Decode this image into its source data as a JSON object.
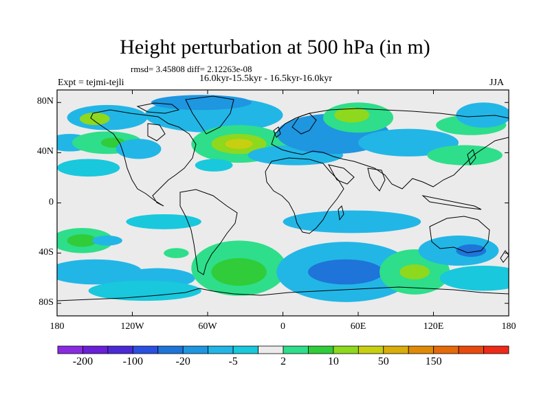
{
  "title": "Height perturbation at 500 hPa (in m)",
  "stats": "rmsd= 3.45808 diff= 2.12263e-08",
  "periods": "16.0kyr-15.5kyr - 16.5kyr-16.0kyr",
  "experiment": "Expt = tejmi-tejli",
  "season": "JJA",
  "lat_ticks": [
    {
      "label": "80N",
      "lat": 80
    },
    {
      "label": "40N",
      "lat": 40
    },
    {
      "label": "0",
      "lat": 0
    },
    {
      "label": "40S",
      "lat": -40
    },
    {
      "label": "80S",
      "lat": -80
    }
  ],
  "lon_ticks": [
    {
      "label": "180",
      "lon": -180
    },
    {
      "label": "120W",
      "lon": -120
    },
    {
      "label": "60W",
      "lon": -60
    },
    {
      "label": "0",
      "lon": 0
    },
    {
      "label": "60E",
      "lon": 60
    },
    {
      "label": "120E",
      "lon": 120
    },
    {
      "label": "180",
      "lon": 180
    }
  ],
  "colorbar": {
    "colors": [
      "#8a2be2",
      "#6a1fd8",
      "#4b2ad6",
      "#2b4fe0",
      "#1e74d8",
      "#1e96e0",
      "#22b6e6",
      "#19c8dc",
      "#ebebeb",
      "#2ede8a",
      "#30cc3a",
      "#8ed81e",
      "#c8cf10",
      "#d9ad0a",
      "#e08a08",
      "#e56a0a",
      "#e84a0e",
      "#ee2a18"
    ],
    "labels": [
      {
        "text": "-200",
        "boundary": 1
      },
      {
        "text": "-100",
        "boundary": 3
      },
      {
        "text": "-20",
        "boundary": 5
      },
      {
        "text": "-5",
        "boundary": 7
      },
      {
        "text": "2",
        "boundary": 9
      },
      {
        "text": "10",
        "boundary": 11
      },
      {
        "text": "50",
        "boundary": 13
      },
      {
        "text": "150",
        "boundary": 15
      }
    ]
  },
  "anomalies": [
    {
      "lon": -140,
      "lat": 68,
      "rx": 32,
      "ry": 10,
      "level": 6
    },
    {
      "lon": -150,
      "lat": 67,
      "rx": 12,
      "ry": 5,
      "level": 11
    },
    {
      "lon": -55,
      "lat": 70,
      "rx": 55,
      "ry": 14,
      "level": 6
    },
    {
      "lon": -65,
      "lat": 80,
      "rx": 40,
      "ry": 6,
      "level": 5
    },
    {
      "lon": -170,
      "lat": 48,
      "rx": 18,
      "ry": 7,
      "level": 6
    },
    {
      "lon": -140,
      "lat": 48,
      "rx": 28,
      "ry": 9,
      "level": 9
    },
    {
      "lon": -135,
      "lat": 48,
      "rx": 10,
      "ry": 4,
      "level": 10
    },
    {
      "lon": -155,
      "lat": 28,
      "rx": 25,
      "ry": 7,
      "level": 7
    },
    {
      "lon": -115,
      "lat": 43,
      "rx": 18,
      "ry": 8,
      "level": 6
    },
    {
      "lon": -35,
      "lat": 47,
      "rx": 38,
      "ry": 15,
      "level": 9
    },
    {
      "lon": -35,
      "lat": 47,
      "rx": 22,
      "ry": 8,
      "level": 11
    },
    {
      "lon": -35,
      "lat": 47,
      "rx": 11,
      "ry": 4,
      "level": 12
    },
    {
      "lon": -55,
      "lat": 30,
      "rx": 15,
      "ry": 5,
      "level": 7
    },
    {
      "lon": 10,
      "lat": 38,
      "rx": 38,
      "ry": 8,
      "level": 6
    },
    {
      "lon": 40,
      "lat": 55,
      "rx": 45,
      "ry": 16,
      "level": 5
    },
    {
      "lon": 60,
      "lat": 68,
      "rx": 28,
      "ry": 12,
      "level": 9
    },
    {
      "lon": 55,
      "lat": 70,
      "rx": 14,
      "ry": 6,
      "level": 11
    },
    {
      "lon": 100,
      "lat": 48,
      "rx": 40,
      "ry": 11,
      "level": 6
    },
    {
      "lon": 150,
      "lat": 62,
      "rx": 28,
      "ry": 8,
      "level": 9
    },
    {
      "lon": 160,
      "lat": 70,
      "rx": 22,
      "ry": 10,
      "level": 6
    },
    {
      "lon": 145,
      "lat": 38,
      "rx": 30,
      "ry": 8,
      "level": 9
    },
    {
      "lon": -160,
      "lat": -30,
      "rx": 25,
      "ry": 10,
      "level": 9
    },
    {
      "lon": -160,
      "lat": -30,
      "rx": 12,
      "ry": 5,
      "level": 10
    },
    {
      "lon": -95,
      "lat": -15,
      "rx": 30,
      "ry": 6,
      "level": 7
    },
    {
      "lon": -85,
      "lat": -40,
      "rx": 10,
      "ry": 4,
      "level": 9
    },
    {
      "lon": -150,
      "lat": -55,
      "rx": 38,
      "ry": 10,
      "level": 6
    },
    {
      "lon": -100,
      "lat": -60,
      "rx": 30,
      "ry": 8,
      "level": 6
    },
    {
      "lon": -110,
      "lat": -70,
      "rx": 45,
      "ry": 8,
      "level": 7
    },
    {
      "lon": -35,
      "lat": -52,
      "rx": 38,
      "ry": 22,
      "level": 9
    },
    {
      "lon": -35,
      "lat": -55,
      "rx": 22,
      "ry": 11,
      "level": 10
    },
    {
      "lon": 50,
      "lat": -55,
      "rx": 55,
      "ry": 24,
      "level": 6
    },
    {
      "lon": 50,
      "lat": -55,
      "rx": 30,
      "ry": 10,
      "level": 4
    },
    {
      "lon": 55,
      "lat": -15,
      "rx": 55,
      "ry": 9,
      "level": 6
    },
    {
      "lon": 105,
      "lat": -55,
      "rx": 28,
      "ry": 18,
      "level": 9
    },
    {
      "lon": 105,
      "lat": -55,
      "rx": 12,
      "ry": 6,
      "level": 11
    },
    {
      "lon": 140,
      "lat": -38,
      "rx": 32,
      "ry": 12,
      "level": 6
    },
    {
      "lon": 150,
      "lat": -38,
      "rx": 12,
      "ry": 5,
      "level": 4
    },
    {
      "lon": 160,
      "lat": -60,
      "rx": 35,
      "ry": 10,
      "level": 7
    },
    {
      "lon": -140,
      "lat": -30,
      "rx": 12,
      "ry": 4,
      "level": 6
    }
  ]
}
